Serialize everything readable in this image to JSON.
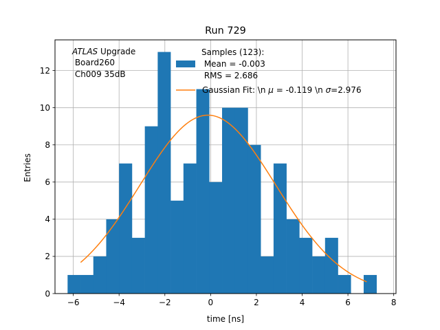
{
  "chart_data": {
    "type": "bar",
    "title": "Run 729",
    "xlabel": "time [ns]",
    "ylabel": "Entries",
    "xlim": [
      -6.8,
      8.1
    ],
    "ylim": [
      0,
      13.65
    ],
    "grid": true,
    "xticks": [
      -6,
      -4,
      -2,
      0,
      2,
      4,
      6,
      8
    ],
    "xtick_labels": [
      "−6",
      "−4",
      "−2",
      "0",
      "2",
      "4",
      "6",
      "8"
    ],
    "yticks": [
      0,
      2,
      4,
      6,
      8,
      10,
      12
    ],
    "ytick_labels": [
      "0",
      "2",
      "4",
      "6",
      "8",
      "10",
      "12"
    ],
    "bin_start": -6.25,
    "bin_width": 0.5625,
    "values": [
      1,
      1,
      2,
      4,
      7,
      3,
      9,
      13,
      5,
      7,
      11,
      6,
      10,
      10,
      8,
      2,
      7,
      4,
      3,
      2,
      3,
      1,
      0,
      1
    ],
    "gaussian": {
      "mu": -0.119,
      "sigma": 2.976,
      "peak": 9.6,
      "x_range": [
        -5.68,
        6.82
      ]
    },
    "annotation": {
      "italic": "ATLAS",
      "line1_rest": " Upgrade",
      "line2": " Board260",
      "line3": " Ch009 35dB"
    },
    "legend": {
      "position": "upper-right",
      "hist_label_lines": [
        "Samples (123):",
        " Mean = -0.003",
        " RMS = 2.686"
      ],
      "fit_label_prefix": "Gaussian Fit: \\n ",
      "fit_label_mu": "μ",
      "fit_label_mid": " = -0.119 \\n ",
      "fit_label_sigma": "σ",
      "fit_label_suffix": "=2.976"
    },
    "colors": {
      "hist": "#1f77b4",
      "fit": "#ff7f0e",
      "grid": "#b0b0b0",
      "axes": "#000000"
    }
  }
}
